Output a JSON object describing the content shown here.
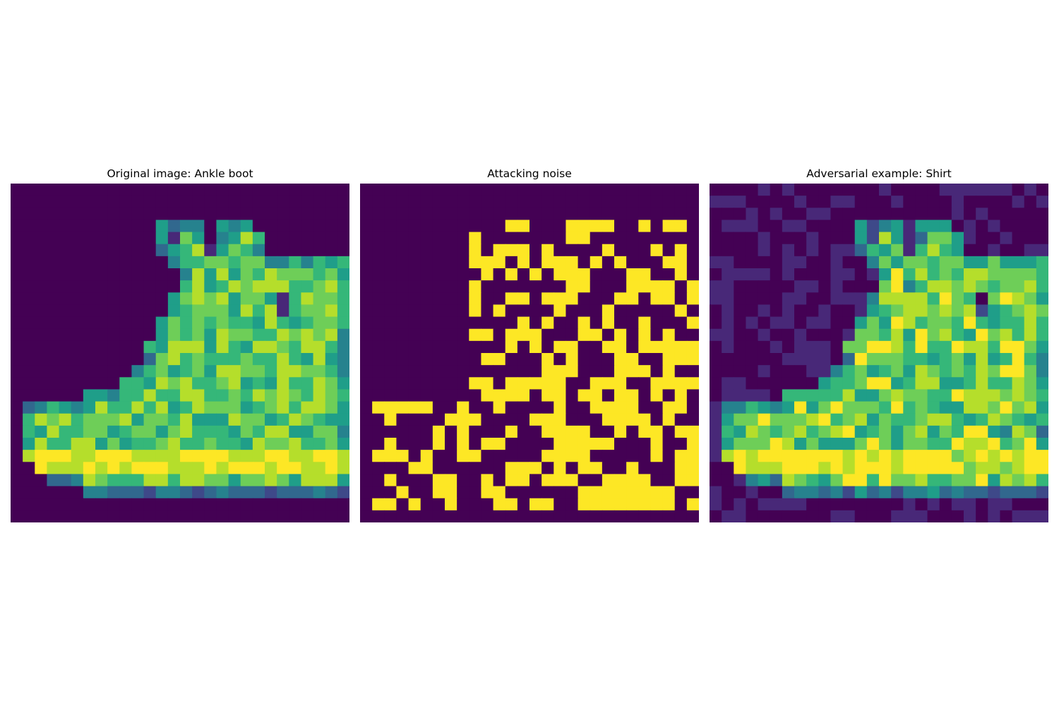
{
  "figure": {
    "panels": [
      {
        "title": "Original image: Ankle boot"
      },
      {
        "title": "Attacking noise"
      },
      {
        "title": "Adversarial example: Shirt"
      }
    ]
  },
  "colors": {
    "background": "#ffffff",
    "colormap": [
      "#440154",
      "#482878",
      "#3e4989",
      "#31688e",
      "#26828e",
      "#1f9e89",
      "#35b779",
      "#6ece58",
      "#b5de2b",
      "#fde725"
    ]
  }
}
